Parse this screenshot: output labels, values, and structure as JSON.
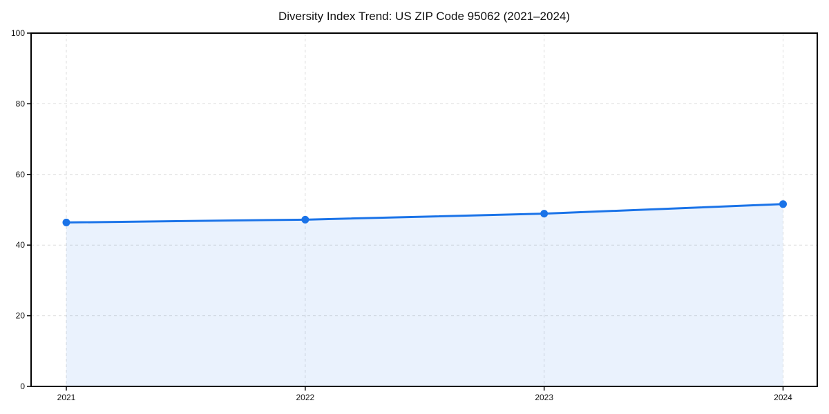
{
  "chart_data": {
    "type": "area",
    "title": "Diversity Index Trend: US ZIP Code 95062 (2021–2024)",
    "categories": [
      "2021",
      "2022",
      "2023",
      "2024"
    ],
    "values": [
      46.4,
      47.2,
      48.9,
      51.6
    ],
    "xlabel": "",
    "ylabel": "",
    "ylim": [
      0,
      100
    ],
    "yticks": [
      0,
      20,
      40,
      60,
      80,
      100
    ],
    "grid": "dashed",
    "legend_position": "none",
    "colors": {
      "line": "#1a73e8",
      "marker": "#1a73e8",
      "fill": "rgba(26,115,232,0.09)",
      "grid": "#dcdcdc",
      "spine": "#000000",
      "text": "#111111",
      "background": "#ffffff"
    }
  }
}
